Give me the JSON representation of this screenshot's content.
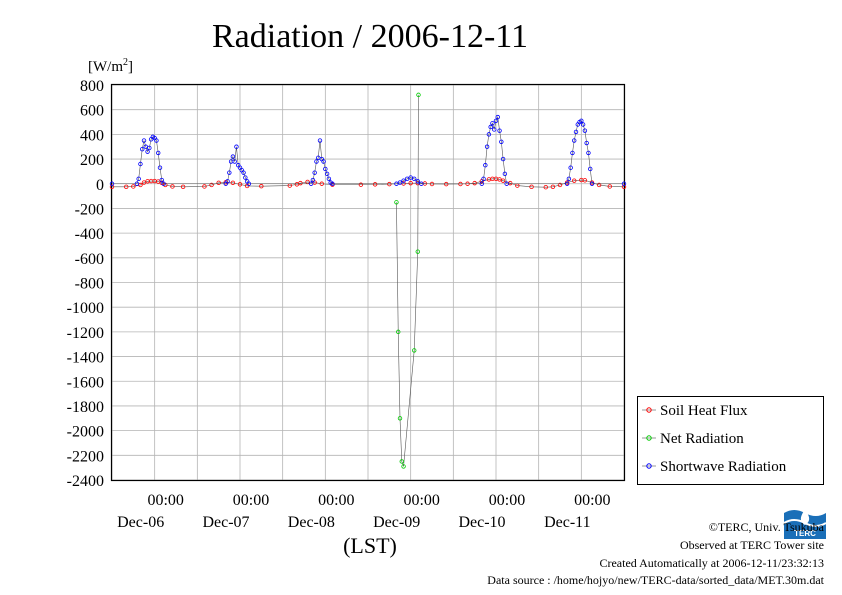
{
  "chart_data": {
    "type": "line",
    "title": "Radiation / 2006-12-11",
    "y_unit": "[W/m2]",
    "y_unit_base": "[W/m",
    "y_unit_sup": "2",
    "y_unit_close": "]",
    "xlabel": "(LST)",
    "ylim": [
      -2400,
      800
    ],
    "y_ticks": [
      "800",
      "600",
      "400",
      "200",
      "0",
      "-200",
      "-400",
      "-600",
      "-800",
      "-1000",
      "-1200",
      "-1400",
      "-1600",
      "-1800",
      "-2000",
      "-2200",
      "-2400"
    ],
    "x_range_hours": [
      0,
      144
    ],
    "x_tick_labels": [
      {
        "time": "00:00",
        "date": "Dec-06",
        "at": 21
      },
      {
        "time": "00:00",
        "date": "Dec-07",
        "at": 45
      },
      {
        "time": "00:00",
        "date": "Dec-08",
        "at": 69
      },
      {
        "time": "00:00",
        "date": "Dec-09",
        "at": 93
      },
      {
        "time": "00:00",
        "date": "Dec-10",
        "at": 117
      },
      {
        "time": "00:00",
        "date": "Dec-11",
        "at": 141
      }
    ],
    "grid": true,
    "legend_position": "bottom-right",
    "series": [
      {
        "name": "Soil Heat Flux",
        "color": "#ff0000",
        "marker": "circle",
        "points": [
          [
            0,
            -25
          ],
          [
            4,
            -25
          ],
          [
            6,
            -22
          ],
          [
            8,
            -10
          ],
          [
            9,
            10
          ],
          [
            10,
            20
          ],
          [
            11,
            22
          ],
          [
            12,
            22
          ],
          [
            13,
            18
          ],
          [
            14,
            8
          ],
          [
            15,
            -10
          ],
          [
            17,
            -22
          ],
          [
            20,
            -25
          ],
          [
            26,
            -22
          ],
          [
            28,
            -10
          ],
          [
            30,
            8
          ],
          [
            32,
            12
          ],
          [
            34,
            8
          ],
          [
            36,
            -5
          ],
          [
            38,
            -18
          ],
          [
            42,
            -20
          ],
          [
            50,
            -15
          ],
          [
            52,
            -5
          ],
          [
            53,
            5
          ],
          [
            55,
            15
          ],
          [
            57,
            10
          ],
          [
            59,
            0
          ],
          [
            62,
            -8
          ],
          [
            70,
            -8
          ],
          [
            74,
            -5
          ],
          [
            78,
            -3
          ],
          [
            82,
            2
          ],
          [
            84,
            5
          ],
          [
            86,
            5
          ],
          [
            88,
            2
          ],
          [
            90,
            -2
          ],
          [
            94,
            -3
          ],
          [
            98,
            -2
          ],
          [
            100,
            0
          ],
          [
            102,
            5
          ],
          [
            104,
            20
          ],
          [
            106,
            35
          ],
          [
            107,
            40
          ],
          [
            108,
            40
          ],
          [
            109,
            35
          ],
          [
            110,
            25
          ],
          [
            112,
            5
          ],
          [
            114,
            -15
          ],
          [
            118,
            -25
          ],
          [
            122,
            -28
          ],
          [
            124,
            -25
          ],
          [
            126,
            -10
          ],
          [
            128,
            10
          ],
          [
            130,
            25
          ],
          [
            132,
            30
          ],
          [
            133,
            28
          ],
          [
            135,
            10
          ],
          [
            137,
            -10
          ],
          [
            140,
            -22
          ],
          [
            144,
            -25
          ]
        ]
      },
      {
        "name": "Net Radiation",
        "color": "#00cc00",
        "marker": "circle",
        "points": [
          [
            80,
            -150
          ],
          [
            80.5,
            -1200
          ],
          [
            81,
            -1900
          ],
          [
            81.5,
            -2250
          ],
          [
            82,
            -2290
          ],
          [
            85,
            -1350
          ],
          [
            86,
            -550
          ],
          [
            86.2,
            720
          ]
        ]
      },
      {
        "name": "Shortwave Radiation",
        "color": "#0000ff",
        "marker": "circle",
        "points": [
          [
            0,
            0
          ],
          [
            7,
            0
          ],
          [
            7.5,
            40
          ],
          [
            8,
            160
          ],
          [
            8.5,
            280
          ],
          [
            9,
            350
          ],
          [
            9.5,
            300
          ],
          [
            10,
            260
          ],
          [
            10.5,
            290
          ],
          [
            11,
            360
          ],
          [
            11.5,
            380
          ],
          [
            12,
            370
          ],
          [
            12.5,
            350
          ],
          [
            13,
            250
          ],
          [
            13.5,
            130
          ],
          [
            14,
            30
          ],
          [
            14.5,
            0
          ],
          [
            32,
            0
          ],
          [
            32.5,
            20
          ],
          [
            33,
            90
          ],
          [
            33.5,
            180
          ],
          [
            34,
            220
          ],
          [
            34.5,
            180
          ],
          [
            35,
            300
          ],
          [
            35.5,
            150
          ],
          [
            36,
            130
          ],
          [
            36.5,
            110
          ],
          [
            37,
            90
          ],
          [
            37.5,
            50
          ],
          [
            38,
            20
          ],
          [
            38.5,
            0
          ],
          [
            56,
            0
          ],
          [
            56.5,
            30
          ],
          [
            57,
            90
          ],
          [
            57.5,
            180
          ],
          [
            58,
            210
          ],
          [
            58.5,
            350
          ],
          [
            59,
            200
          ],
          [
            59.5,
            180
          ],
          [
            60,
            120
          ],
          [
            60.5,
            80
          ],
          [
            61,
            40
          ],
          [
            61.5,
            10
          ],
          [
            62,
            0
          ],
          [
            80,
            0
          ],
          [
            81,
            10
          ],
          [
            82,
            25
          ],
          [
            83,
            40
          ],
          [
            84,
            50
          ],
          [
            85,
            40
          ],
          [
            86,
            20
          ],
          [
            87,
            0
          ],
          [
            104,
            0
          ],
          [
            104.5,
            40
          ],
          [
            105,
            150
          ],
          [
            105.5,
            300
          ],
          [
            106,
            400
          ],
          [
            106.5,
            460
          ],
          [
            107,
            490
          ],
          [
            107.5,
            440
          ],
          [
            108,
            510
          ],
          [
            108.5,
            540
          ],
          [
            109,
            430
          ],
          [
            109.5,
            340
          ],
          [
            110,
            200
          ],
          [
            110.5,
            80
          ],
          [
            111,
            0
          ],
          [
            128,
            0
          ],
          [
            128.5,
            40
          ],
          [
            129,
            130
          ],
          [
            129.5,
            250
          ],
          [
            130,
            350
          ],
          [
            130.5,
            420
          ],
          [
            131,
            480
          ],
          [
            131.5,
            500
          ],
          [
            132,
            510
          ],
          [
            132.5,
            480
          ],
          [
            133,
            430
          ],
          [
            133.5,
            330
          ],
          [
            134,
            250
          ],
          [
            134.5,
            120
          ],
          [
            135,
            0
          ],
          [
            144,
            0
          ]
        ]
      }
    ]
  },
  "footer": {
    "copyright": "©TERC, Univ. Tsukuba",
    "observed": "Observed at TERC Tower site",
    "created": "Created Automatically at 2006-12-11/23:32:13",
    "source": "Data source : /home/hojyo/new/TERC-data/sorted_data/MET.30m.dat"
  },
  "logo": {
    "text": "TERC",
    "color": "#1a6fb8"
  }
}
